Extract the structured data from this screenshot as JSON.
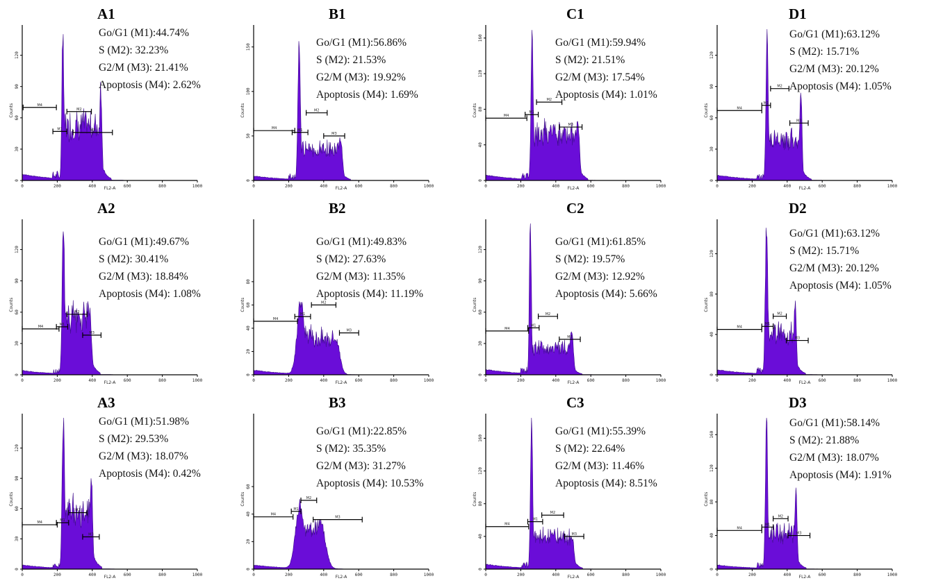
{
  "chart_data": [
    {
      "type": "area",
      "title": "A1",
      "xlabel": "FL2-A",
      "ylabel": "Counts",
      "xlim": [
        0,
        1000
      ],
      "xticks": [
        "0",
        "200",
        "400",
        "600",
        "800",
        "1000"
      ],
      "yticks": [
        "0",
        "30",
        "60",
        "90",
        "120"
      ],
      "ylim": [
        0,
        145
      ],
      "g1": 44.74,
      "s": 32.23,
      "g2m": 21.41,
      "apoptosis": 2.62,
      "stats": [
        "Go/G1 (M1):44.74%",
        " S (M2): 32.23%",
        "G2/M (M3): 21.41%",
        "Apoptosis (M4): 2.62%"
      ],
      "markers": [
        {
          "label": "M4",
          "x0": 5,
          "x1": 195,
          "y": 70
        },
        {
          "label": "M1",
          "x0": 175,
          "x1": 255,
          "y": 47
        },
        {
          "label": "M2",
          "x0": 255,
          "x1": 395,
          "y": 66
        },
        {
          "label": "M3",
          "x0": 290,
          "x1": 515,
          "y": 46
        }
      ],
      "peaks": {
        "g1": {
          "x": 232,
          "h": 145,
          "w": 8
        },
        "g2": {
          "x": 448,
          "h": 88,
          "w": 10
        },
        "plateau": 52,
        "base": 6
      }
    },
    {
      "type": "area",
      "title": "B1",
      "xlabel": "FL2-A",
      "ylabel": "Counts",
      "xlim": [
        0,
        1000
      ],
      "xticks": [
        "0",
        "200",
        "400",
        "600",
        "800",
        "1000"
      ],
      "yticks": [
        "0",
        "50",
        "100",
        "150"
      ],
      "ylim": [
        0,
        170
      ],
      "g1": 56.86,
      "s": 21.53,
      "g2m": 19.92,
      "apoptosis": 1.69,
      "stats": [
        "Go/G1 (M1):56.86%",
        " S (M2): 21.53%",
        "G2/M (M3): 19.92%",
        "Apoptosis (M4): 1.69%"
      ],
      "markers": [
        {
          "label": "M4",
          "x0": 0,
          "x1": 235,
          "y": 56
        },
        {
          "label": "M1",
          "x0": 220,
          "x1": 310,
          "y": 54
        },
        {
          "label": "M2",
          "x0": 300,
          "x1": 420,
          "y": 76
        },
        {
          "label": "M3",
          "x0": 400,
          "x1": 520,
          "y": 50
        }
      ],
      "peaks": {
        "g1": {
          "x": 260,
          "h": 160,
          "w": 10
        },
        "g2": {
          "x": 495,
          "h": 48,
          "w": 16
        },
        "plateau": 34,
        "base": 5
      }
    },
    {
      "type": "area",
      "title": "C1",
      "xlabel": "FL2-A",
      "ylabel": "Counts",
      "xlim": [
        0,
        1000
      ],
      "xticks": [
        "0",
        "200",
        "400",
        "600",
        "800",
        "1000"
      ],
      "yticks": [
        "0",
        "40",
        "80",
        "120",
        "160"
      ],
      "ylim": [
        0,
        170
      ],
      "g1": 59.94,
      "s": 21.51,
      "g2m": 17.54,
      "apoptosis": 1.01,
      "stats": [
        "Go/G1 (M1):59.94%",
        " S (M2): 21.51%",
        "G2/M (M3): 17.54%",
        "Apoptosis (M4): 1.01%"
      ],
      "markers": [
        {
          "label": "M4",
          "x0": 0,
          "x1": 235,
          "y": 70
        },
        {
          "label": "M1",
          "x0": 225,
          "x1": 300,
          "y": 74
        },
        {
          "label": "M2",
          "x0": 290,
          "x1": 435,
          "y": 88
        },
        {
          "label": "M3",
          "x0": 420,
          "x1": 550,
          "y": 60
        }
      ],
      "peaks": {
        "g1": {
          "x": 265,
          "h": 170,
          "w": 9
        },
        "g2": {
          "x": 525,
          "h": 68,
          "w": 14
        },
        "plateau": 52,
        "base": 6
      }
    },
    {
      "type": "area",
      "title": "D1",
      "xlabel": "FL2-A",
      "ylabel": "Counts",
      "xlim": [
        0,
        1000
      ],
      "xticks": [
        "0",
        "200",
        "400",
        "600",
        "800",
        "1000"
      ],
      "yticks": [
        "0",
        "30",
        "60",
        "90",
        "120"
      ],
      "ylim": [
        0,
        145
      ],
      "g1": 63.12,
      "s": 15.71,
      "g2m": 20.12,
      "apoptosis": 1.05,
      "stats": [
        "Go/G1 (M1):63.12%",
        " S (M2): 15.71%",
        "G2/M (M3): 20.12%",
        "Apoptosis (M4): 1.05%"
      ],
      "markers": [
        {
          "label": "M4",
          "x0": 0,
          "x1": 255,
          "y": 67
        },
        {
          "label": "M1",
          "x0": 255,
          "x1": 305,
          "y": 72
        },
        {
          "label": "M2",
          "x0": 305,
          "x1": 410,
          "y": 88
        },
        {
          "label": "M3",
          "x0": 415,
          "x1": 520,
          "y": 55
        }
      ],
      "peaks": {
        "g1": {
          "x": 285,
          "h": 145,
          "w": 9
        },
        "g2": {
          "x": 478,
          "h": 88,
          "w": 9
        },
        "plateau": 38,
        "base": 5
      }
    },
    {
      "type": "area",
      "title": "A2",
      "xlabel": "FL2-A",
      "ylabel": "Counts",
      "xlim": [
        0,
        1000
      ],
      "xticks": [
        "0",
        "200",
        "400",
        "600",
        "800",
        "1000"
      ],
      "yticks": [
        "0",
        "30",
        "60",
        "90",
        "120"
      ],
      "ylim": [
        0,
        145
      ],
      "g1": 49.67,
      "s": 30.41,
      "g2m": 18.84,
      "apoptosis": 1.08,
      "stats": [
        "Go/G1 (M1):49.67%",
        " S (M2): 30.41%",
        "G2/M (M3): 18.84%",
        "Apoptosis (M4): 1.08%"
      ],
      "markers": [
        {
          "label": "M4",
          "x0": 0,
          "x1": 210,
          "y": 44
        },
        {
          "label": "M1",
          "x0": 195,
          "x1": 260,
          "y": 46
        },
        {
          "label": "M2",
          "x0": 255,
          "x1": 370,
          "y": 58
        },
        {
          "label": "M3",
          "x0": 345,
          "x1": 450,
          "y": 38
        }
      ],
      "peaks": {
        "g1": {
          "x": 235,
          "h": 145,
          "w": 10
        },
        "g2": {
          "x": 385,
          "h": 60,
          "w": 14
        },
        "plateau": 55,
        "base": 4
      }
    },
    {
      "type": "area",
      "title": "B2",
      "xlabel": "FL2-A",
      "ylabel": "Counts",
      "xlim": [
        0,
        1000
      ],
      "xticks": [
        "0",
        "200",
        "400",
        "600",
        "800",
        "1000"
      ],
      "yticks": [
        "0",
        "20",
        "40",
        "60",
        "80"
      ],
      "ylim": [
        0,
        130
      ],
      "g1": 49.83,
      "s": 27.63,
      "g2m": 11.35,
      "apoptosis": 11.19,
      "stats": [
        "Go/G1 (M1):49.83%",
        " S (M2): 27.63%",
        "G2/M (M3): 11.35%",
        "Apoptosis (M4): 11.19%"
      ],
      "markers": [
        {
          "label": "M4",
          "x0": 0,
          "x1": 250,
          "y": 46
        },
        {
          "label": "M1",
          "x0": 235,
          "x1": 325,
          "y": 50
        },
        {
          "label": "M2",
          "x0": 330,
          "x1": 470,
          "y": 60
        },
        {
          "label": "M3",
          "x0": 490,
          "x1": 600,
          "y": 36
        }
      ],
      "peaks": {
        "g1": {
          "x": 270,
          "h": 62,
          "w": 30
        },
        "g2": {
          "x": 470,
          "h": 30,
          "w": 30
        },
        "plateau": 32,
        "base": 4
      }
    },
    {
      "type": "area",
      "title": "C2",
      "xlabel": "FL2-A",
      "ylabel": "Counts",
      "xlim": [
        0,
        1000
      ],
      "xticks": [
        "0",
        "200",
        "400",
        "600",
        "800",
        "1000"
      ],
      "yticks": [
        "0",
        "30",
        "60",
        "90",
        "120"
      ],
      "ylim": [
        0,
        145
      ],
      "g1": 61.85,
      "s": 19.57,
      "g2m": 12.92,
      "apoptosis": 5.66,
      "stats": [
        "Go/G1 (M1):61.85%",
        " S (M2): 19.57%",
        "G2/M (M3): 12.92%",
        "Apoptosis (M4): 5.66%"
      ],
      "markers": [
        {
          "label": "M4",
          "x0": 0,
          "x1": 245,
          "y": 42
        },
        {
          "label": "M1",
          "x0": 240,
          "x1": 305,
          "y": 45
        },
        {
          "label": "M2",
          "x0": 300,
          "x1": 410,
          "y": 56
        },
        {
          "label": "M3",
          "x0": 420,
          "x1": 540,
          "y": 34
        }
      ],
      "peaks": {
        "g1": {
          "x": 255,
          "h": 145,
          "w": 8
        },
        "g2": {
          "x": 490,
          "h": 42,
          "w": 14
        },
        "plateau": 26,
        "base": 5
      }
    },
    {
      "type": "area",
      "title": "D2",
      "xlabel": "FL2-A",
      "ylabel": "Counts",
      "xlim": [
        0,
        1000
      ],
      "xticks": [
        "0",
        "200",
        "400",
        "600",
        "800",
        "1000"
      ],
      "yticks": [
        "0",
        "40",
        "80",
        "120"
      ],
      "ylim": [
        0,
        150
      ],
      "g1": 63.12,
      "s": 15.71,
      "g2m": 20.12,
      "apoptosis": 1.05,
      "stats": [
        "Go/G1 (M1):63.12%",
        " S (M2): 15.71%",
        "G2/M (M3): 20.12%",
        "Apoptosis (M4): 1.05%"
      ],
      "markers": [
        {
          "label": "M4",
          "x0": 0,
          "x1": 255,
          "y": 45
        },
        {
          "label": "M1",
          "x0": 255,
          "x1": 320,
          "y": 48
        },
        {
          "label": "M2",
          "x0": 320,
          "x1": 395,
          "y": 58
        },
        {
          "label": "M3",
          "x0": 395,
          "x1": 520,
          "y": 34
        }
      ],
      "peaks": {
        "g1": {
          "x": 282,
          "h": 150,
          "w": 10
        },
        "g2": {
          "x": 445,
          "h": 72,
          "w": 10
        },
        "plateau": 42,
        "base": 5
      }
    },
    {
      "type": "area",
      "title": "A3",
      "xlabel": "FL2-A",
      "ylabel": "Counts",
      "xlim": [
        0,
        1000
      ],
      "xticks": [
        "0",
        "200",
        "400",
        "600",
        "800",
        "1000"
      ],
      "yticks": [
        "0",
        "30",
        "60",
        "90",
        "120"
      ],
      "ylim": [
        0,
        150
      ],
      "g1": 51.98,
      "s": 29.53,
      "g2m": 18.07,
      "apoptosis": 0.42,
      "stats": [
        "Go/G1 (M1):51.98%",
        " S (M2): 29.53%",
        "G2/M (M3): 18.07%",
        "Apoptosis (M4): 0.42%"
      ],
      "markers": [
        {
          "label": "M4",
          "x0": 0,
          "x1": 200,
          "y": 44
        },
        {
          "label": "M1",
          "x0": 195,
          "x1": 265,
          "y": 46
        },
        {
          "label": "M2",
          "x0": 265,
          "x1": 370,
          "y": 56
        },
        {
          "label": "M3",
          "x0": 345,
          "x1": 440,
          "y": 32
        }
      ],
      "peaks": {
        "g1": {
          "x": 235,
          "h": 150,
          "w": 10
        },
        "g2": {
          "x": 395,
          "h": 90,
          "w": 10
        },
        "plateau": 58,
        "base": 4
      }
    },
    {
      "type": "area",
      "title": "B3",
      "xlabel": "FL2-A",
      "ylabel": "Counts",
      "xlim": [
        0,
        1000
      ],
      "xticks": [
        "0",
        "200",
        "400",
        "600",
        "800",
        "1000"
      ],
      "yticks": [
        "0",
        "20",
        "40",
        "60"
      ],
      "ylim": [
        0,
        110
      ],
      "g1": 22.85,
      "s": 35.35,
      "g2m": 31.27,
      "apoptosis": 10.53,
      "stats": [
        "Go/G1 (M1):22.85%",
        " S (M2): 35.35%",
        "G2/M (M3): 31.27%",
        "Apoptosis (M4): 10.53%"
      ],
      "markers": [
        {
          "label": "M4",
          "x0": 0,
          "x1": 225,
          "y": 38
        },
        {
          "label": "M1",
          "x0": 215,
          "x1": 270,
          "y": 42
        },
        {
          "label": "M2",
          "x0": 270,
          "x1": 360,
          "y": 50
        },
        {
          "label": "M3",
          "x0": 340,
          "x1": 620,
          "y": 36
        }
      ],
      "peaks": {
        "g1": {
          "x": 265,
          "h": 46,
          "w": 35
        },
        "g2": {
          "x": 380,
          "h": 34,
          "w": 40
        },
        "plateau": 30,
        "base": 3
      }
    },
    {
      "type": "area",
      "title": "C3",
      "xlabel": "FL2-A",
      "ylabel": "Counts",
      "xlim": [
        0,
        1000
      ],
      "xticks": [
        "0",
        "200",
        "400",
        "600",
        "800",
        "1000"
      ],
      "yticks": [
        "0",
        "40",
        "80",
        "120",
        "160"
      ],
      "ylim": [
        0,
        185
      ],
      "g1": 55.39,
      "s": 22.64,
      "g2m": 11.46,
      "apoptosis": 8.51,
      "stats": [
        "Go/G1 (M1):55.39%",
        " S (M2): 22.64%",
        "G2/M (M3): 11.46%",
        "Apoptosis (M4): 8.51%"
      ],
      "markers": [
        {
          "label": "M4",
          "x0": 0,
          "x1": 245,
          "y": 52
        },
        {
          "label": "M1",
          "x0": 240,
          "x1": 325,
          "y": 58
        },
        {
          "label": "M2",
          "x0": 320,
          "x1": 445,
          "y": 66
        },
        {
          "label": "M3",
          "x0": 450,
          "x1": 560,
          "y": 40
        }
      ],
      "peaks": {
        "g1": {
          "x": 262,
          "h": 185,
          "w": 9
        },
        "g2": {
          "x": 495,
          "h": 36,
          "w": 14
        },
        "plateau": 40,
        "base": 6
      }
    },
    {
      "type": "area",
      "title": "D3",
      "xlabel": "FL2-A",
      "ylabel": "Counts",
      "xlim": [
        0,
        1000
      ],
      "xticks": [
        "0",
        "200",
        "400",
        "600",
        "800",
        "1000"
      ],
      "yticks": [
        "0",
        "40",
        "80",
        "120",
        "160"
      ],
      "ylim": [
        0,
        180
      ],
      "g1": 58.14,
      "s": 21.88,
      "g2m": 18.07,
      "apoptosis": 1.91,
      "stats": [
        "Go/G1 (M1):58.14%",
        " S (M2): 21.88%",
        "G2/M (M3): 18.07%",
        "Apoptosis (M4): 1.91%"
      ],
      "markers": [
        {
          "label": "M4",
          "x0": 0,
          "x1": 255,
          "y": 46
        },
        {
          "label": "M1",
          "x0": 255,
          "x1": 320,
          "y": 50
        },
        {
          "label": "M2",
          "x0": 320,
          "x1": 405,
          "y": 60
        },
        {
          "label": "M3",
          "x0": 405,
          "x1": 530,
          "y": 40
        }
      ],
      "peaks": {
        "g1": {
          "x": 282,
          "h": 180,
          "w": 9
        },
        "g2": {
          "x": 450,
          "h": 88,
          "w": 10
        },
        "plateau": 42,
        "base": 5
      }
    }
  ],
  "colors": {
    "fill": "#6a0dd8",
    "edge": "#3d0b8a",
    "axis": "#000000",
    "marker": "#000000"
  }
}
